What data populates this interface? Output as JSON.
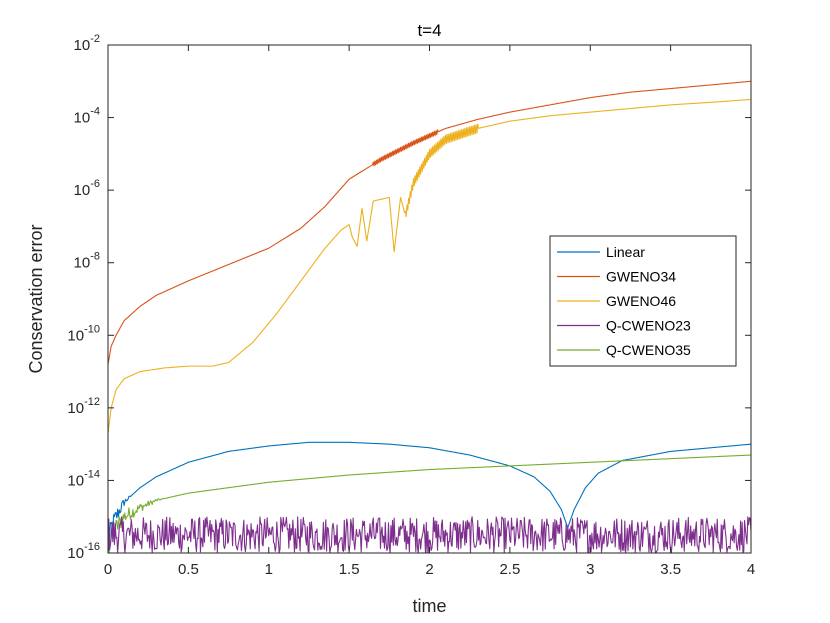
{
  "chart_data": {
    "type": "line",
    "title": "t=4",
    "xlabel": "time",
    "ylabel": "Conservation error",
    "xlim": [
      0,
      4
    ],
    "ylim_log10": [
      -16,
      -2
    ],
    "y_scale": "log",
    "x_ticks": [
      0,
      0.5,
      1,
      1.5,
      2,
      2.5,
      3,
      3.5,
      4
    ],
    "x_tick_labels": [
      "0",
      "0.5",
      "1",
      "1.5",
      "2",
      "2.5",
      "3",
      "3.5",
      "4"
    ],
    "y_tick_exponents": [
      -16,
      -14,
      -12,
      -10,
      -8,
      -6,
      -4,
      -2
    ],
    "y_tick_labels": [
      {
        "base": "10",
        "exp": "-16"
      },
      {
        "base": "10",
        "exp": "-14"
      },
      {
        "base": "10",
        "exp": "-12"
      },
      {
        "base": "10",
        "exp": "-10"
      },
      {
        "base": "10",
        "exp": "-8"
      },
      {
        "base": "10",
        "exp": "-6"
      },
      {
        "base": "10",
        "exp": "-4"
      },
      {
        "base": "10",
        "exp": "-2"
      }
    ],
    "legend_position": "middle-right",
    "series": [
      {
        "name": "Linear",
        "color": "#0072BD",
        "x": [
          0.0,
          0.02,
          0.05,
          0.1,
          0.2,
          0.3,
          0.5,
          0.75,
          1.0,
          1.25,
          1.5,
          1.75,
          2.0,
          2.25,
          2.5,
          2.65,
          2.75,
          2.82,
          2.86,
          2.9,
          2.97,
          3.05,
          3.2,
          3.5,
          3.75,
          4.0
        ],
        "log10_y": [
          -16.0,
          -15.3,
          -15.0,
          -14.6,
          -14.2,
          -13.9,
          -13.5,
          -13.2,
          -13.05,
          -12.95,
          -12.95,
          -13.0,
          -13.1,
          -13.3,
          -13.6,
          -13.9,
          -14.3,
          -14.8,
          -15.3,
          -14.8,
          -14.2,
          -13.8,
          -13.45,
          -13.2,
          -13.1,
          -13.0
        ],
        "noise_until_x": 0.15,
        "noise_amplitude": 0.35
      },
      {
        "name": "GWENO34",
        "color": "#D95319",
        "x": [
          0.0,
          0.02,
          0.05,
          0.1,
          0.2,
          0.3,
          0.5,
          0.75,
          1.0,
          1.2,
          1.35,
          1.5,
          1.7,
          1.9,
          2.1,
          2.3,
          2.5,
          2.75,
          3.0,
          3.25,
          3.5,
          3.75,
          4.0
        ],
        "log10_y": [
          -10.8,
          -10.3,
          -10.0,
          -9.6,
          -9.2,
          -8.9,
          -8.5,
          -8.05,
          -7.6,
          -7.05,
          -6.45,
          -5.7,
          -5.15,
          -4.7,
          -4.3,
          -4.05,
          -3.85,
          -3.65,
          -3.45,
          -3.3,
          -3.2,
          -3.1,
          -3.0
        ],
        "wiggle_range": [
          1.65,
          2.05
        ],
        "wiggle_amplitude": 0.06
      },
      {
        "name": "GWENO46",
        "color": "#EDB120",
        "x": [
          0.0,
          0.02,
          0.05,
          0.1,
          0.2,
          0.35,
          0.5,
          0.65,
          0.75,
          0.9,
          1.05,
          1.2,
          1.35,
          1.45,
          1.5,
          1.52,
          1.55,
          1.58,
          1.61,
          1.65,
          1.7,
          1.75,
          1.78,
          1.82,
          1.85,
          1.9,
          2.0,
          2.1,
          2.3,
          2.5,
          2.75,
          3.0,
          3.25,
          3.5,
          3.75,
          4.0
        ],
        "log10_y": [
          -12.7,
          -12.0,
          -11.5,
          -11.2,
          -11.0,
          -10.9,
          -10.85,
          -10.85,
          -10.75,
          -10.2,
          -9.4,
          -8.5,
          -7.6,
          -7.1,
          -6.95,
          -7.3,
          -7.55,
          -6.5,
          -7.4,
          -6.3,
          -6.25,
          -6.2,
          -7.7,
          -6.2,
          -6.7,
          -5.8,
          -5.0,
          -4.6,
          -4.3,
          -4.1,
          -3.95,
          -3.85,
          -3.75,
          -3.65,
          -3.58,
          -3.5
        ],
        "wiggle_range": [
          1.85,
          2.3
        ],
        "wiggle_amplitude": 0.12
      },
      {
        "name": "Q-CWENO23",
        "color": "#7E2F8E",
        "x": [
          0.0,
          4.0
        ],
        "log10_y": [
          -15.5,
          -15.5
        ],
        "noise_until_x": 4.0,
        "noise_amplitude": 0.5,
        "noise_floor": -16.0,
        "noise_ceiling": -15.0
      },
      {
        "name": "Q-CWENO35",
        "color": "#77AC30",
        "x": [
          0.0,
          0.02,
          0.05,
          0.1,
          0.2,
          0.3,
          0.5,
          0.75,
          1.0,
          1.5,
          2.0,
          2.5,
          3.0,
          3.5,
          4.0
        ],
        "log10_y": [
          -16.0,
          -15.6,
          -15.3,
          -15.0,
          -14.75,
          -14.55,
          -14.35,
          -14.2,
          -14.05,
          -13.85,
          -13.7,
          -13.6,
          -13.5,
          -13.4,
          -13.3
        ],
        "noise_until_x": 0.35,
        "noise_amplitude": 0.3
      }
    ]
  }
}
